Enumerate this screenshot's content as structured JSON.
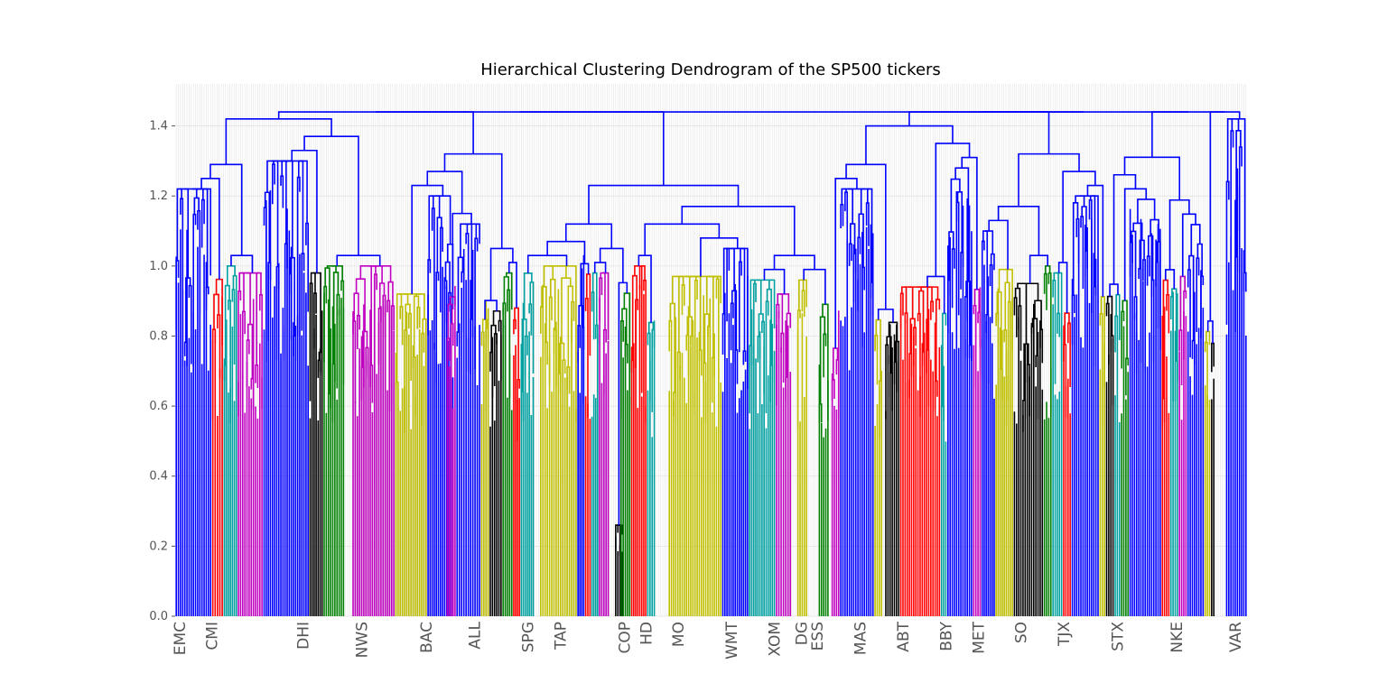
{
  "chart_data": {
    "type": "dendrogram",
    "title": "Hierarchical Clustering Dendrogram of the SP500 tickers",
    "xlabel": "",
    "ylabel": "",
    "ylim": [
      0,
      1.52
    ],
    "y_ticks": [
      "0.0",
      "0.2",
      "0.4",
      "0.6",
      "0.8",
      "1.0",
      "1.2",
      "1.4"
    ],
    "grid": true,
    "leaf_count": 500,
    "readable_leaf_labels": [
      "EMC",
      "CMI",
      "DHI",
      "NWS",
      "BAC",
      "ALL",
      "SPG",
      "TAP",
      "COP",
      "HD",
      "MO",
      "WMT",
      "XOM",
      "DG",
      "ESS",
      "MAS",
      "ABT",
      "BBY",
      "MET",
      "SO",
      "TJX",
      "STX",
      "NKE",
      "VAR"
    ],
    "top_links": [
      {
        "height": 1.44,
        "left_cluster": 0,
        "right_cluster": 1
      },
      {
        "height": 1.43,
        "left_cluster": 1,
        "right_cluster": 2
      },
      {
        "height": 1.42,
        "left_cluster": 2,
        "right_cluster": 3
      },
      {
        "height": 1.41,
        "left_cluster": 3,
        "right_cluster": 4
      },
      {
        "height": 1.38,
        "left_cluster": 4,
        "right_cluster": 5
      },
      {
        "height": 1.35,
        "left_cluster": 5,
        "right_cluster": 6
      },
      {
        "height": 1.31,
        "left_cluster": 6,
        "right_cluster": 7
      },
      {
        "height": 1.28,
        "left_cluster": 7,
        "right_cluster": 8
      }
    ],
    "cluster_colors": [
      "#0000ff",
      "#ff0000",
      "#00a0a0",
      "#008000",
      "#c000c0",
      "#bfbf00",
      "#000000"
    ],
    "clusters": [
      {
        "color": "#0000ff",
        "start": 0.0,
        "end": 0.034,
        "height": 1.22
      },
      {
        "color": "#ff0000",
        "start": 0.034,
        "end": 0.045,
        "height": 1.0
      },
      {
        "color": "#00a0a0",
        "start": 0.045,
        "end": 0.058,
        "height": 1.0
      },
      {
        "color": "#c000c0",
        "start": 0.058,
        "end": 0.082,
        "height": 0.98
      },
      {
        "color": "#0000ff",
        "start": 0.082,
        "end": 0.125,
        "height": 1.3
      },
      {
        "color": "#000000",
        "start": 0.125,
        "end": 0.138,
        "height": 0.98
      },
      {
        "color": "#008000",
        "start": 0.138,
        "end": 0.158,
        "height": 1.0
      },
      {
        "color": "#c000c0",
        "start": 0.165,
        "end": 0.205,
        "height": 1.0
      },
      {
        "color": "#bfbf00",
        "start": 0.205,
        "end": 0.235,
        "height": 0.92
      },
      {
        "color": "#0000ff",
        "start": 0.235,
        "end": 0.26,
        "height": 1.2
      },
      {
        "color": "#c000c0",
        "start": 0.253,
        "end": 0.262,
        "height": 1.0
      },
      {
        "color": "#0000ff",
        "start": 0.262,
        "end": 0.285,
        "height": 1.12
      },
      {
        "color": "#bfbf00",
        "start": 0.285,
        "end": 0.293,
        "height": 1.0
      },
      {
        "color": "#000000",
        "start": 0.293,
        "end": 0.305,
        "height": 0.98
      },
      {
        "color": "#008000",
        "start": 0.305,
        "end": 0.315,
        "height": 0.98
      },
      {
        "color": "#ff0000",
        "start": 0.315,
        "end": 0.322,
        "height": 0.88
      },
      {
        "color": "#00a0a0",
        "start": 0.322,
        "end": 0.335,
        "height": 0.98
      },
      {
        "color": "#bfbf00",
        "start": 0.34,
        "end": 0.375,
        "height": 1.0
      },
      {
        "color": "#0000ff",
        "start": 0.375,
        "end": 0.382,
        "height": 1.1
      },
      {
        "color": "#ff0000",
        "start": 0.382,
        "end": 0.388,
        "height": 0.99
      },
      {
        "color": "#00a0a0",
        "start": 0.388,
        "end": 0.395,
        "height": 0.98
      },
      {
        "color": "#c000c0",
        "start": 0.395,
        "end": 0.405,
        "height": 0.98
      },
      {
        "color": "#000000",
        "start": 0.41,
        "end": 0.418,
        "height": 0.26
      },
      {
        "color": "#008000",
        "start": 0.415,
        "end": 0.425,
        "height": 0.99
      },
      {
        "color": "#ff0000",
        "start": 0.425,
        "end": 0.44,
        "height": 1.0
      },
      {
        "color": "#00a0a0",
        "start": 0.44,
        "end": 0.448,
        "height": 0.9
      },
      {
        "color": "#bfbf00",
        "start": 0.46,
        "end": 0.51,
        "height": 0.97
      },
      {
        "color": "#0000ff",
        "start": 0.51,
        "end": 0.535,
        "height": 1.05
      },
      {
        "color": "#00a0a0",
        "start": 0.535,
        "end": 0.56,
        "height": 0.96
      },
      {
        "color": "#c000c0",
        "start": 0.56,
        "end": 0.575,
        "height": 0.92
      },
      {
        "color": "#bfbf00",
        "start": 0.58,
        "end": 0.59,
        "height": 0.96
      },
      {
        "color": "#008000",
        "start": 0.6,
        "end": 0.61,
        "height": 0.9
      },
      {
        "color": "#c000c0",
        "start": 0.612,
        "end": 0.62,
        "height": 0.93
      },
      {
        "color": "#0000ff",
        "start": 0.62,
        "end": 0.652,
        "height": 1.22
      },
      {
        "color": "#bfbf00",
        "start": 0.652,
        "end": 0.66,
        "height": 0.85
      },
      {
        "color": "#000000",
        "start": 0.662,
        "end": 0.676,
        "height": 1.0
      },
      {
        "color": "#ff0000",
        "start": 0.676,
        "end": 0.714,
        "height": 0.94
      },
      {
        "color": "#00a0a0",
        "start": 0.714,
        "end": 0.72,
        "height": 0.88
      },
      {
        "color": "#0000ff",
        "start": 0.72,
        "end": 0.744,
        "height": 1.28
      },
      {
        "color": "#c000c0",
        "start": 0.744,
        "end": 0.752,
        "height": 1.0
      },
      {
        "color": "#0000ff",
        "start": 0.752,
        "end": 0.765,
        "height": 1.1
      },
      {
        "color": "#bfbf00",
        "start": 0.765,
        "end": 0.782,
        "height": 0.99
      },
      {
        "color": "#000000",
        "start": 0.782,
        "end": 0.81,
        "height": 0.95
      },
      {
        "color": "#008000",
        "start": 0.81,
        "end": 0.818,
        "height": 1.0
      },
      {
        "color": "#00a0a0",
        "start": 0.818,
        "end": 0.828,
        "height": 0.98
      },
      {
        "color": "#ff0000",
        "start": 0.828,
        "end": 0.836,
        "height": 0.97
      },
      {
        "color": "#0000ff",
        "start": 0.836,
        "end": 0.862,
        "height": 1.2
      },
      {
        "color": "#bfbf00",
        "start": 0.862,
        "end": 0.868,
        "height": 0.94
      },
      {
        "color": "#000000",
        "start": 0.868,
        "end": 0.876,
        "height": 0.96
      },
      {
        "color": "#00a0a0",
        "start": 0.876,
        "end": 0.882,
        "height": 0.98
      },
      {
        "color": "#008000",
        "start": 0.882,
        "end": 0.89,
        "height": 0.98
      },
      {
        "color": "#0000ff",
        "start": 0.89,
        "end": 0.92,
        "height": 1.24
      },
      {
        "color": "#ff0000",
        "start": 0.92,
        "end": 0.928,
        "height": 0.97
      },
      {
        "color": "#00a0a0",
        "start": 0.928,
        "end": 0.936,
        "height": 0.98
      },
      {
        "color": "#c000c0",
        "start": 0.936,
        "end": 0.944,
        "height": 0.97
      },
      {
        "color": "#0000ff",
        "start": 0.944,
        "end": 0.96,
        "height": 1.12
      },
      {
        "color": "#bfbf00",
        "start": 0.96,
        "end": 0.966,
        "height": 0.98
      },
      {
        "color": "#000000",
        "start": 0.966,
        "end": 0.97,
        "height": 1.0
      },
      {
        "color": "#0000ff",
        "start": 0.98,
        "end": 1.0,
        "height": 1.42
      }
    ]
  }
}
